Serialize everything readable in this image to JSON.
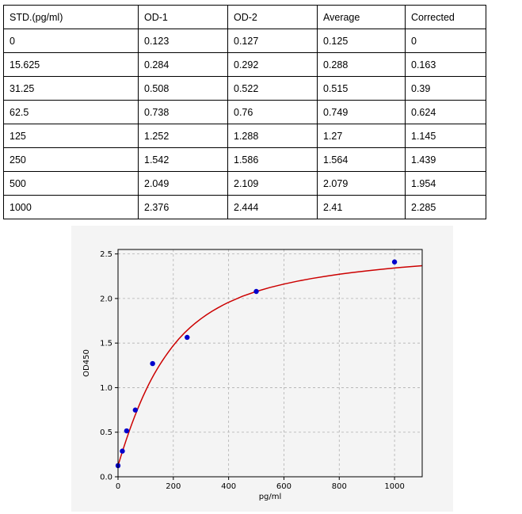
{
  "table": {
    "headers": [
      "STD.(pg/ml)",
      "OD-1",
      "OD-2",
      "Average",
      "Corrected"
    ],
    "rows": [
      [
        "0",
        "0.123",
        "0.127",
        "0.125",
        "0"
      ],
      [
        "15.625",
        "0.284",
        "0.292",
        "0.288",
        "0.163"
      ],
      [
        "31.25",
        "0.508",
        "0.522",
        "0.515",
        "0.39"
      ],
      [
        "62.5",
        "0.738",
        "0.76",
        "0.749",
        "0.624"
      ],
      [
        "125",
        "1.252",
        "1.288",
        "1.27",
        "1.145"
      ],
      [
        "250",
        "1.542",
        "1.586",
        "1.564",
        "1.439"
      ],
      [
        "500",
        "2.049",
        "2.109",
        "2.079",
        "1.954"
      ],
      [
        "1000",
        "2.376",
        "2.444",
        "2.41",
        "2.285"
      ]
    ]
  },
  "chart_data": {
    "type": "scatter",
    "xlabel": "pg/ml",
    "ylabel": "OD450",
    "xlim": [
      0,
      1100
    ],
    "ylim": [
      0,
      2.55
    ],
    "xticks": [
      0,
      200,
      400,
      600,
      800,
      1000
    ],
    "xtick_labels": [
      "0",
      "200",
      "400",
      "600",
      "800",
      "1000"
    ],
    "yticks": [
      0.0,
      0.5,
      1.0,
      1.5,
      2.0,
      2.5
    ],
    "ytick_labels": [
      "0.0",
      "0.5",
      "1.0",
      "1.5",
      "2.0",
      "2.5"
    ],
    "grid": true,
    "points": {
      "x": [
        0,
        15.625,
        31.25,
        62.5,
        125,
        250,
        500,
        1000
      ],
      "y": [
        0.125,
        0.288,
        0.515,
        0.749,
        1.27,
        1.564,
        2.079,
        2.41
      ],
      "color": "#0000cc"
    },
    "fit_curve": {
      "type": "line",
      "color": "#cc0000",
      "x": [
        0,
        10,
        20,
        30,
        40,
        50,
        60,
        70,
        80,
        90,
        100,
        110,
        120,
        130,
        140,
        150,
        160,
        170,
        180,
        190,
        200,
        220,
        240,
        260,
        280,
        300,
        320,
        340,
        360,
        380,
        400,
        450,
        500,
        550,
        600,
        650,
        700,
        750,
        800,
        850,
        900,
        950,
        1000,
        1050,
        1100
      ],
      "y": [
        0.125,
        0.226,
        0.323,
        0.417,
        0.507,
        0.593,
        0.675,
        0.753,
        0.828,
        0.899,
        0.966,
        1.03,
        1.09,
        1.147,
        1.201,
        1.252,
        1.3,
        1.346,
        1.39,
        1.432,
        1.473,
        1.547,
        1.613,
        1.672,
        1.725,
        1.773,
        1.817,
        1.857,
        1.893,
        1.927,
        1.958,
        2.025,
        2.079,
        2.124,
        2.162,
        2.195,
        2.224,
        2.249,
        2.272,
        2.292,
        2.31,
        2.327,
        2.342,
        2.356,
        2.368
      ]
    }
  }
}
